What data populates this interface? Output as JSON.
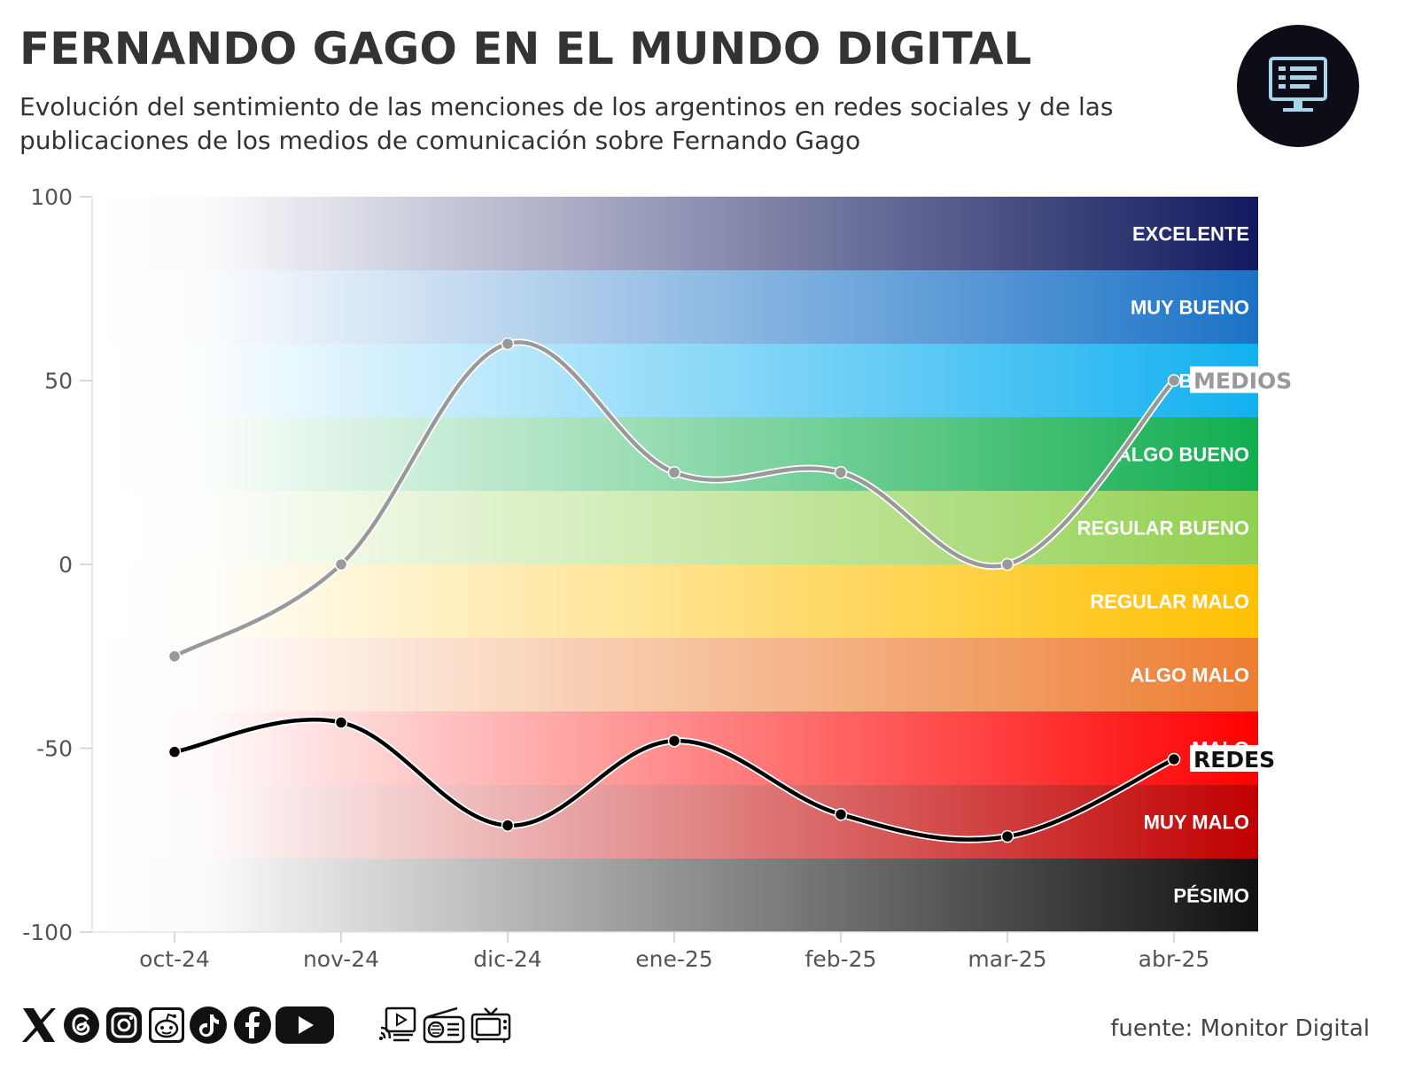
{
  "header": {
    "title": "FERNANDO GAGO EN EL MUNDO DIGITAL",
    "subtitle": "Evolución del sentimiento de las menciones de los argentinos en redes sociales y de las publicaciones de los medios de comunicación sobre Fernando Gago",
    "badge_icon": "monitor-icon"
  },
  "chart_data": {
    "type": "line",
    "title": "FERNANDO GAGO EN EL MUNDO DIGITAL",
    "xlabel": "",
    "ylabel": "",
    "categories": [
      "oct-24",
      "nov-24",
      "dic-24",
      "ene-25",
      "feb-25",
      "mar-25",
      "abr-25"
    ],
    "ylim": [
      -100,
      100
    ],
    "yticks": [
      100,
      50,
      0,
      -50,
      -100
    ],
    "grid": false,
    "legend": "inline labels at line ends",
    "series": [
      {
        "name": "MEDIOS",
        "color": "#999999",
        "values": [
          -25,
          0,
          60,
          25,
          25,
          0,
          50
        ]
      },
      {
        "name": "REDES",
        "color": "#000000",
        "values": [
          -51,
          -43,
          -71,
          -48,
          -68,
          -74,
          -53
        ]
      }
    ],
    "bands": [
      {
        "label": "EXCELENTE",
        "from": 80,
        "to": 100,
        "color": "#121a5e"
      },
      {
        "label": "MUY BUENO",
        "from": 60,
        "to": 80,
        "color": "#1b72c6"
      },
      {
        "label": "BUENO",
        "from": 40,
        "to": 60,
        "color": "#12b0f0"
      },
      {
        "label": "ALGO BUENO",
        "from": 20,
        "to": 40,
        "color": "#10ae4e"
      },
      {
        "label": "REGULAR BUENO",
        "from": 0,
        "to": 20,
        "color": "#92d050"
      },
      {
        "label": "REGULAR MALO",
        "from": -20,
        "to": 0,
        "color": "#ffc000"
      },
      {
        "label": "ALGO MALO",
        "from": -40,
        "to": -20,
        "color": "#ed7d31"
      },
      {
        "label": "MALO",
        "from": -60,
        "to": -40,
        "color": "#ff0000"
      },
      {
        "label": "MUY MALO",
        "from": -80,
        "to": -60,
        "color": "#c00000"
      },
      {
        "label": "PÉSIMO",
        "from": -100,
        "to": -80,
        "color": "#111111"
      }
    ]
  },
  "footer": {
    "source": "fuente: Monitor Digital",
    "social_icons": [
      "x-icon",
      "threads-icon",
      "instagram-icon",
      "reddit-icon",
      "tiktok-icon",
      "facebook-icon",
      "youtube-icon"
    ],
    "media_icons": [
      "digital-media-icon",
      "radio-icon",
      "tv-icon"
    ]
  }
}
